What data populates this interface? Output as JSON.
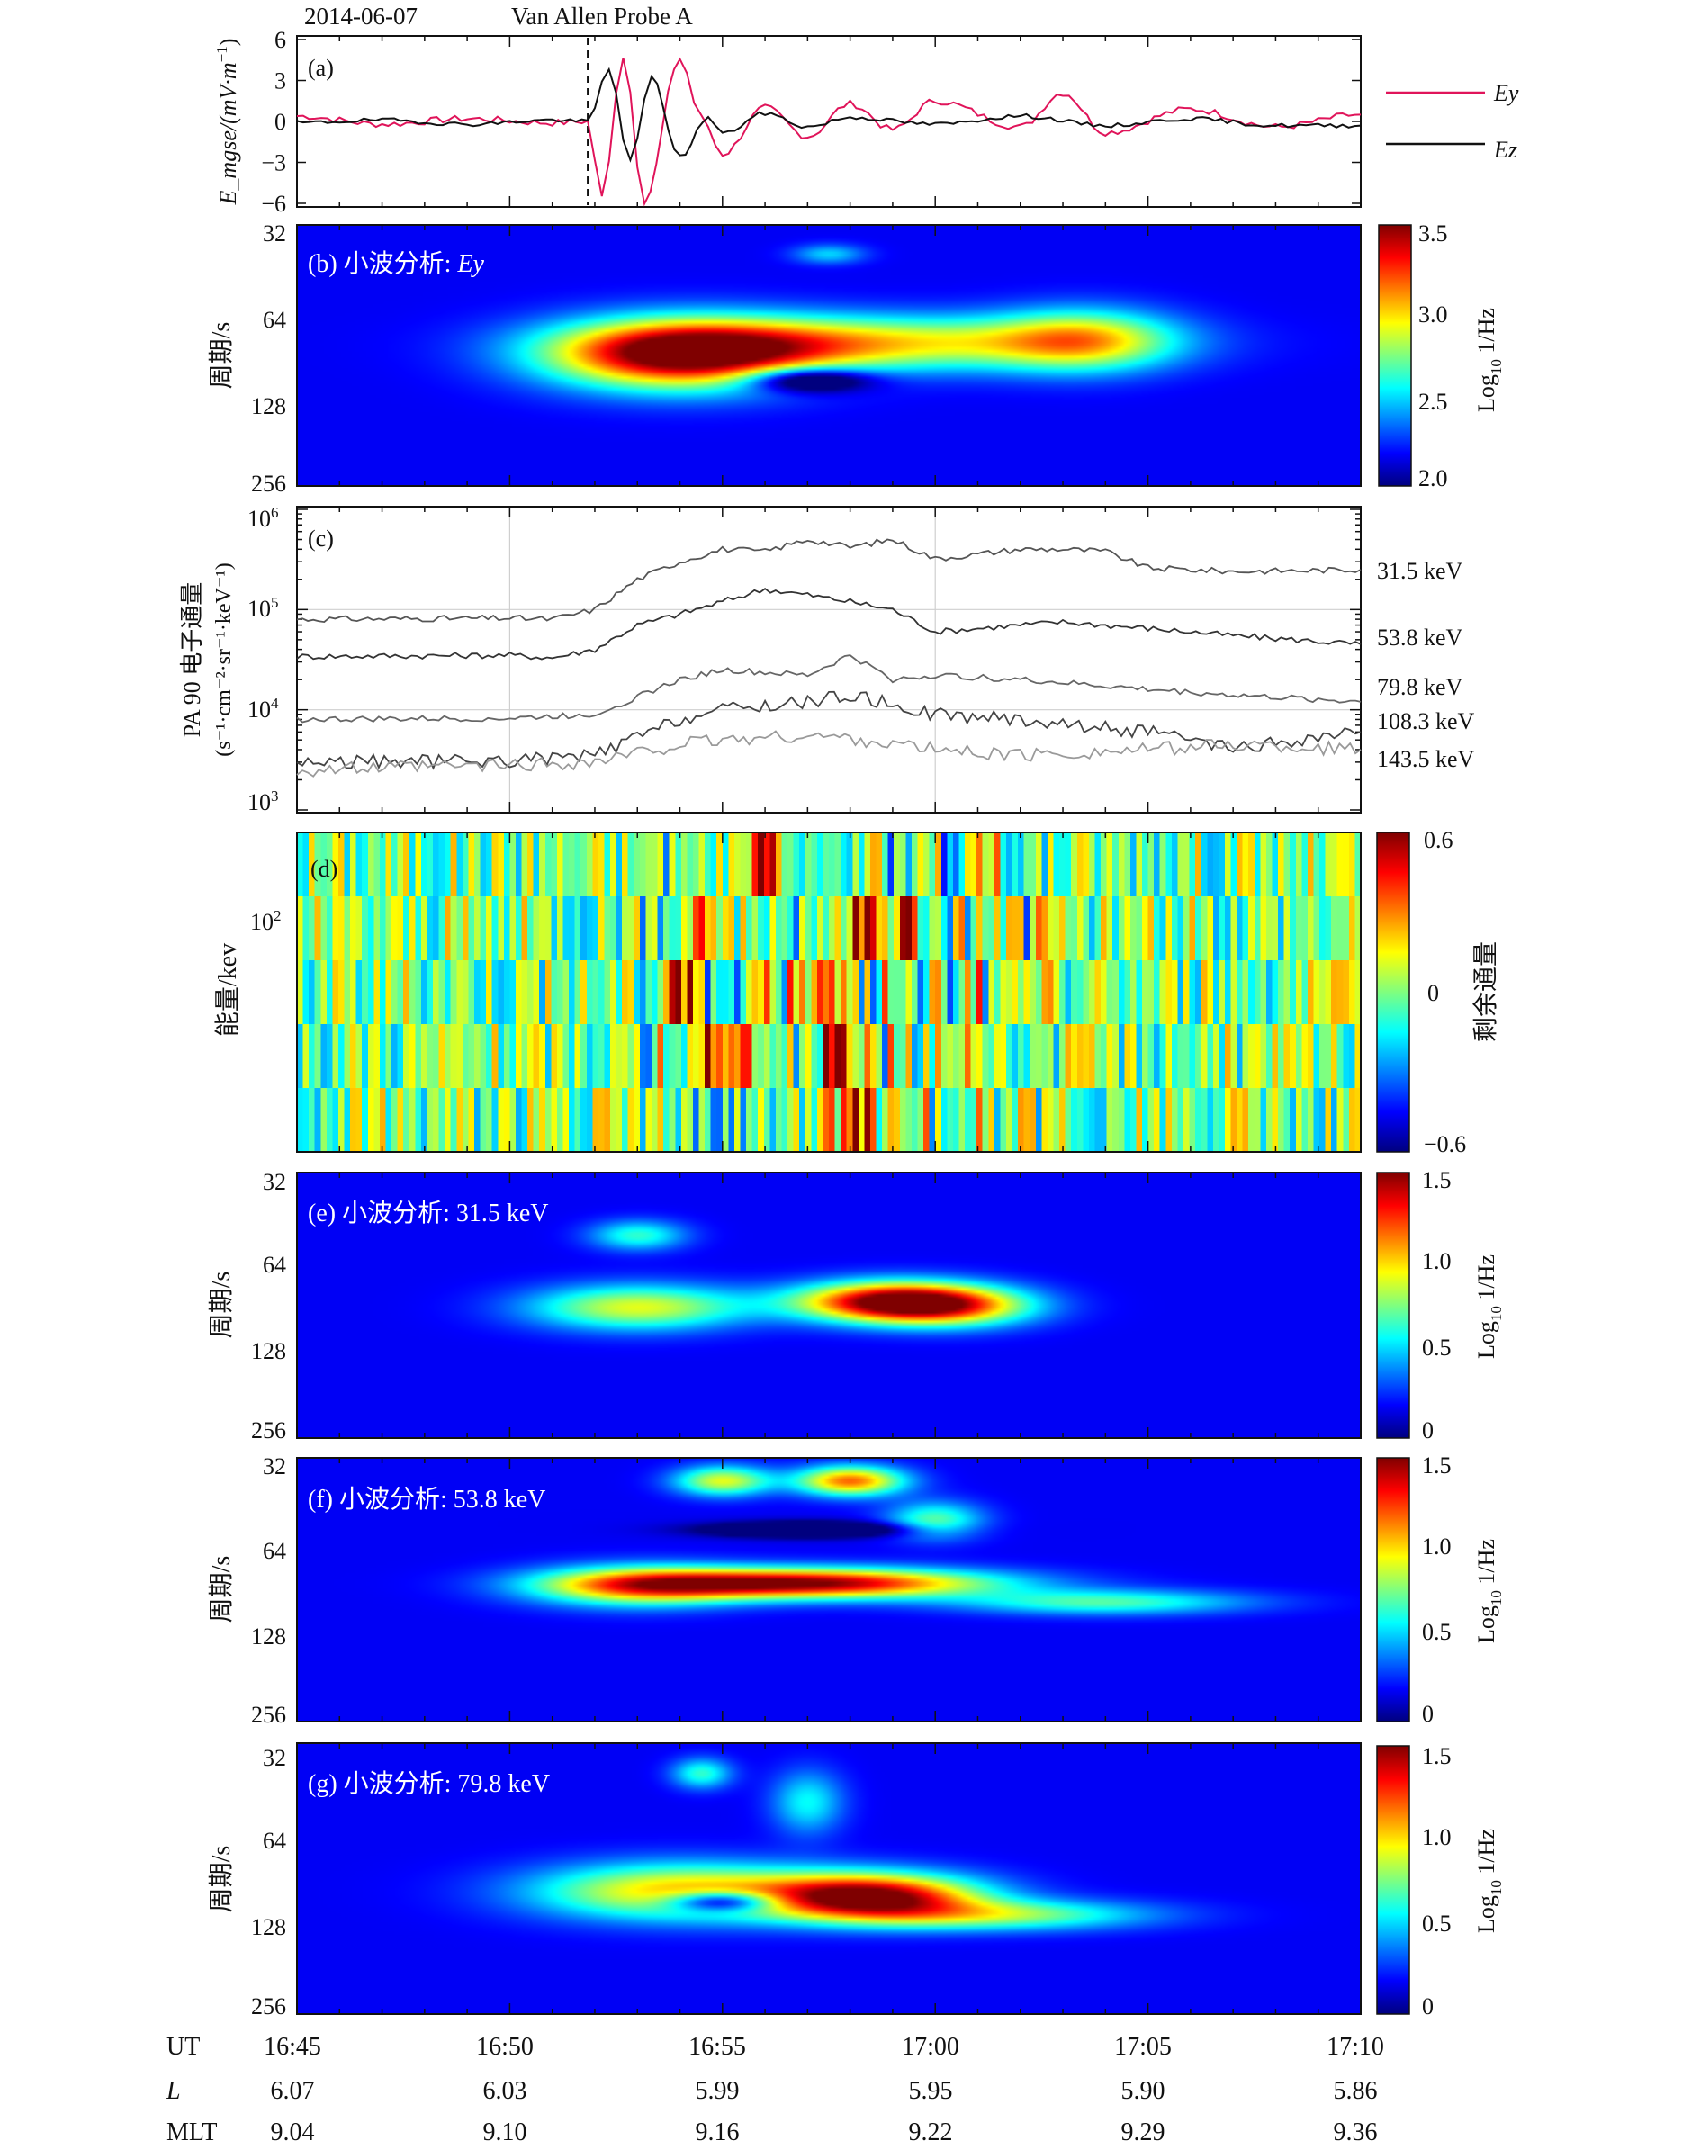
{
  "header": {
    "date": "2014-06-07",
    "spacecraft": "Van Allen Probe A"
  },
  "panel_a": {
    "tag": "(a)",
    "ylabel_main": "E_mgse/(mV·m",
    "ylabel_exp": "−1",
    "ylabel_close": ")",
    "yticks": [
      "6",
      "3",
      "0",
      "−3",
      "−6"
    ],
    "yvals": [
      6,
      3,
      0,
      -3,
      -6
    ],
    "legend": [
      {
        "name": "Ey",
        "color": "#e0145a"
      },
      {
        "name": "Ez",
        "color": "#111111"
      }
    ]
  },
  "panel_b": {
    "tag": "(b) 小波分析: ",
    "tag_italic": "Ey",
    "ylabel": "周期/s",
    "yticks": [
      "32",
      "64",
      "128",
      "256"
    ],
    "cbar_label_main": "Log",
    "cbar_label_sub": "10",
    "cbar_label_tail": " 1/Hz",
    "cbar_ticks": [
      "3.5",
      "3.0",
      "2.5",
      "2.0"
    ]
  },
  "panel_c": {
    "tag": "(c)",
    "ylabel_line1": "PA 90 电子通量",
    "ylabel_line2": "(s⁻¹·cm⁻²·sr⁻¹·keV⁻¹)",
    "yticks": [
      {
        "base": "10",
        "exp": "6"
      },
      {
        "base": "10",
        "exp": "5"
      },
      {
        "base": "10",
        "exp": "4"
      },
      {
        "base": "10",
        "exp": "3"
      }
    ],
    "channels": [
      {
        "label": "31.5 keV",
        "color": "#d8203c"
      },
      {
        "label": "53.8 keV",
        "color": "#2a2a9a"
      },
      {
        "label": "79.8 keV",
        "color": "#2c9a2c"
      },
      {
        "label": "108.3 keV",
        "color": "#d62060"
      },
      {
        "label": "143.5 keV",
        "color": "#e0b020"
      }
    ]
  },
  "panel_d": {
    "tag": "(d)",
    "ylabel": "能量/kev",
    "ytick_base": "10",
    "ytick_exp": "2",
    "cbar_label": "剩余通量",
    "cbar_ticks": [
      "0.6",
      "0",
      "−0.6"
    ]
  },
  "panel_e": {
    "tag": "(e) 小波分析: 31.5 keV",
    "ylabel": "周期/s",
    "yticks": [
      "32",
      "64",
      "128",
      "256"
    ],
    "cbar_label_main": "Log",
    "cbar_label_sub": "10",
    "cbar_label_tail": " 1/Hz",
    "cbar_ticks": [
      "1.5",
      "1.0",
      "0.5",
      "0"
    ]
  },
  "panel_f": {
    "tag": "(f) 小波分析: 53.8 keV",
    "ylabel": "周期/s",
    "yticks": [
      "32",
      "64",
      "128",
      "256"
    ],
    "cbar_label_main": "Log",
    "cbar_label_sub": "10",
    "cbar_label_tail": " 1/Hz",
    "cbar_ticks": [
      "1.5",
      "1.0",
      "0.5",
      "0"
    ]
  },
  "panel_g": {
    "tag": "(g) 小波分析: 79.8 keV",
    "ylabel": "周期/s",
    "yticks": [
      "32",
      "64",
      "128",
      "256"
    ],
    "cbar_label_main": "Log",
    "cbar_label_sub": "10",
    "cbar_label_tail": " 1/Hz",
    "cbar_ticks": [
      "1.5",
      "1.0",
      "0.5",
      "0"
    ]
  },
  "footer": {
    "rows": [
      {
        "label": "UT",
        "italic": false,
        "values": [
          "16:45",
          "16:50",
          "16:55",
          "17:00",
          "17:05",
          "17:10"
        ]
      },
      {
        "label": "L",
        "italic": true,
        "values": [
          "6.07",
          "6.03",
          "5.99",
          "5.95",
          "5.90",
          "5.86"
        ]
      },
      {
        "label": "MLT",
        "italic": false,
        "values": [
          "9.04",
          "9.10",
          "9.16",
          "9.22",
          "9.29",
          "9.36"
        ]
      }
    ]
  },
  "chart_data": [
    {
      "type": "line",
      "panel": "a",
      "xlim": [
        "16:45",
        "17:10"
      ],
      "ylim": [
        -6,
        6
      ],
      "event_marker_x": "16:51:50",
      "series": [
        {
          "name": "Ey",
          "x": [
            "16:45",
            "16:47",
            "16:49",
            "16:51",
            "16:51:50",
            "16:52:10",
            "16:52:40",
            "16:53:10",
            "16:54",
            "16:54:30",
            "16:55",
            "16:56",
            "16:57",
            "16:58",
            "16:59",
            "17:00",
            "17:02",
            "17:03",
            "17:04",
            "17:06",
            "17:08",
            "17:10"
          ],
          "y": [
            0.4,
            -0.2,
            0.2,
            -0.1,
            0,
            -5.6,
            4.8,
            -5.8,
            4.6,
            0.3,
            -2.4,
            1.0,
            -1.1,
            1.3,
            -0.6,
            1.5,
            -0.4,
            2.1,
            -0.8,
            0.9,
            -0.4,
            0.5
          ]
        },
        {
          "name": "Ez",
          "x": [
            "16:45",
            "16:47",
            "16:49",
            "16:51",
            "16:51:50",
            "16:52:20",
            "16:52:50",
            "16:53:20",
            "16:54",
            "16:54:40",
            "16:55",
            "16:56",
            "16:57",
            "16:58",
            "17:00",
            "17:02",
            "17:04",
            "17:06",
            "17:08",
            "17:10"
          ],
          "y": [
            -0.1,
            0.1,
            -0.2,
            0.1,
            0,
            3.8,
            -2.9,
            3.2,
            -2.6,
            0.3,
            -0.9,
            0.6,
            -0.4,
            0.3,
            -0.2,
            0.4,
            -0.3,
            0.2,
            -0.3,
            -0.3
          ]
        }
      ]
    },
    {
      "type": "heatmap",
      "panel": "b",
      "x_range": [
        "16:45",
        "17:10"
      ],
      "y_scale": "log2",
      "ylim": [
        32,
        256
      ],
      "clim": [
        2.0,
        3.5
      ],
      "blobs": [
        {
          "t": "16:54:00",
          "period": 90,
          "st": 2.2,
          "sp": 0.28,
          "amp": 1.0
        },
        {
          "t": "16:58:30",
          "period": 82,
          "st": 3.8,
          "sp": 0.22,
          "amp": 0.6
        },
        {
          "t": "17:03:30",
          "period": 80,
          "st": 1.5,
          "sp": 0.25,
          "amp": 0.52
        },
        {
          "t": "16:57:30",
          "period": 40,
          "st": 0.6,
          "sp": 0.08,
          "amp": 0.25
        }
      ],
      "holes": [
        {
          "t": "16:57:00",
          "period": 110,
          "st": 1.0,
          "sp": 0.1,
          "amp": 0.55
        }
      ]
    },
    {
      "type": "line",
      "panel": "c",
      "y_scale": "log10",
      "ylim": [
        1000,
        1000000
      ],
      "series": [
        {
          "name": "31.5 keV",
          "x": [
            "16:45",
            "16:50",
            "16:51",
            "16:52",
            "16:53",
            "16:54",
            "16:55",
            "16:56",
            "16:57",
            "16:58",
            "16:59",
            "16:59:30",
            "17:00",
            "17:02",
            "17:03",
            "17:04",
            "17:05",
            "17:07",
            "17:10"
          ],
          "y": [
            80000,
            82000,
            80000,
            100000,
            200000,
            300000,
            400000,
            380000,
            500000,
            420000,
            500000,
            400000,
            320000,
            400000,
            400000,
            380000,
            260000,
            240000,
            250000
          ]
        },
        {
          "name": "53.8 keV",
          "x": [
            "16:45",
            "16:50",
            "16:51",
            "16:52",
            "16:53",
            "16:54",
            "16:55",
            "16:56",
            "16:57",
            "16:58",
            "16:59",
            "17:00",
            "17:02",
            "17:03",
            "17:05",
            "17:07",
            "17:10"
          ],
          "y": [
            34000,
            35000,
            33000,
            40000,
            70000,
            90000,
            120000,
            160000,
            140000,
            120000,
            100000,
            60000,
            70000,
            75000,
            65000,
            55000,
            45000
          ]
        },
        {
          "name": "79.8 keV",
          "x": [
            "16:45",
            "16:50",
            "16:52",
            "16:54",
            "16:55",
            "16:57",
            "16:58",
            "16:59",
            "17:00",
            "17:02",
            "17:05",
            "17:07",
            "17:10"
          ],
          "y": [
            8000,
            8200,
            9000,
            20000,
            25000,
            22000,
            35000,
            20000,
            22000,
            20000,
            16000,
            14000,
            12000
          ]
        },
        {
          "name": "108.3 keV",
          "x": [
            "16:45",
            "16:50",
            "16:52",
            "16:54",
            "16:55",
            "16:57",
            "16:58",
            "17:00",
            "17:02",
            "17:05",
            "17:07",
            "17:10"
          ],
          "y": [
            3000,
            3100,
            3500,
            8000,
            10000,
            12000,
            14000,
            9000,
            8000,
            6000,
            4000,
            6000
          ]
        },
        {
          "name": "143.5 keV",
          "x": [
            "16:45",
            "16:50",
            "16:52",
            "16:54",
            "16:55",
            "16:57",
            "16:58",
            "17:00",
            "17:02",
            "17:05",
            "17:07",
            "17:10"
          ],
          "y": [
            2500,
            2800,
            3000,
            4500,
            5000,
            5500,
            5200,
            4000,
            3500,
            4000,
            4500,
            4000
          ]
        }
      ]
    },
    {
      "type": "heatmap",
      "panel": "d",
      "x_range": [
        "16:45",
        "17:10"
      ],
      "rows": 5,
      "clim": [
        -0.6,
        0.6
      ],
      "hot_columns": [
        {
          "t": "16:56:00",
          "row": 0,
          "v": 0.55
        },
        {
          "t": "16:54:30",
          "row": 1,
          "v": 0.4
        },
        {
          "t": "16:58:20",
          "row": 1,
          "v": 0.45
        },
        {
          "t": "16:59:20",
          "row": 1,
          "v": 0.5
        },
        {
          "t": "16:54:00",
          "row": 2,
          "v": 0.55
        },
        {
          "t": "16:57:20",
          "row": 2,
          "v": 0.6
        },
        {
          "t": "16:54:40",
          "row": 3,
          "v": 0.55
        },
        {
          "t": "16:55:30",
          "row": 3,
          "v": 0.5
        },
        {
          "t": "16:57:40",
          "row": 3,
          "v": 0.6
        },
        {
          "t": "16:58:00",
          "row": 4,
          "v": 0.6
        }
      ]
    },
    {
      "type": "heatmap",
      "panel": "e",
      "x_range": [
        "16:45",
        "17:10"
      ],
      "y_scale": "log2",
      "ylim": [
        32,
        256
      ],
      "clim": [
        0,
        1.5
      ],
      "blobs": [
        {
          "t": "16:59:00",
          "period": 88,
          "st": 1.6,
          "sp": 0.16,
          "amp": 1.0
        },
        {
          "t": "16:53:00",
          "period": 92,
          "st": 1.8,
          "sp": 0.18,
          "amp": 0.55
        },
        {
          "t": "17:00:30",
          "period": 92,
          "st": 1.4,
          "sp": 0.16,
          "amp": 0.45
        },
        {
          "t": "16:53:00",
          "period": 52,
          "st": 0.8,
          "sp": 0.12,
          "amp": 0.35
        }
      ],
      "holes": []
    },
    {
      "type": "heatmap",
      "panel": "f",
      "x_range": [
        "16:45",
        "17:10"
      ],
      "y_scale": "log2",
      "ylim": [
        32,
        256
      ],
      "clim": [
        0,
        1.5
      ],
      "blobs": [
        {
          "t": "16:57:00",
          "period": 86,
          "st": 3.0,
          "sp": 0.12,
          "amp": 1.0
        },
        {
          "t": "16:53:00",
          "period": 88,
          "st": 1.8,
          "sp": 0.16,
          "amp": 0.6
        },
        {
          "t": "16:58:00",
          "period": 38,
          "st": 0.9,
          "sp": 0.12,
          "amp": 0.75
        },
        {
          "t": "16:55:00",
          "period": 38,
          "st": 0.8,
          "sp": 0.12,
          "amp": 0.55
        },
        {
          "t": "17:04:00",
          "period": 100,
          "st": 2.4,
          "sp": 0.1,
          "amp": 0.38
        },
        {
          "t": "17:00:00",
          "period": 52,
          "st": 0.8,
          "sp": 0.15,
          "amp": 0.4
        }
      ],
      "holes": [
        {
          "t": "16:57:00",
          "period": 56,
          "st": 1.6,
          "sp": 0.06,
          "amp": 0.5
        }
      ]
    },
    {
      "type": "heatmap",
      "panel": "g",
      "x_range": [
        "16:45",
        "17:10"
      ],
      "y_scale": "log2",
      "ylim": [
        32,
        256
      ],
      "clim": [
        0,
        1.5
      ],
      "blobs": [
        {
          "t": "16:58:30",
          "period": 104,
          "st": 1.8,
          "sp": 0.18,
          "amp": 1.0
        },
        {
          "t": "16:54:00",
          "period": 100,
          "st": 2.4,
          "sp": 0.22,
          "amp": 0.65
        },
        {
          "t": "17:01:30",
          "period": 120,
          "st": 2.5,
          "sp": 0.12,
          "amp": 0.45
        },
        {
          "t": "16:54:30",
          "period": 40,
          "st": 0.5,
          "sp": 0.12,
          "amp": 0.35
        },
        {
          "t": "16:57:00",
          "period": 50,
          "st": 0.6,
          "sp": 0.25,
          "amp": 0.3
        }
      ],
      "holes": [
        {
          "t": "16:55:00",
          "period": 108,
          "st": 0.9,
          "sp": 0.08,
          "amp": 0.6
        }
      ]
    }
  ]
}
